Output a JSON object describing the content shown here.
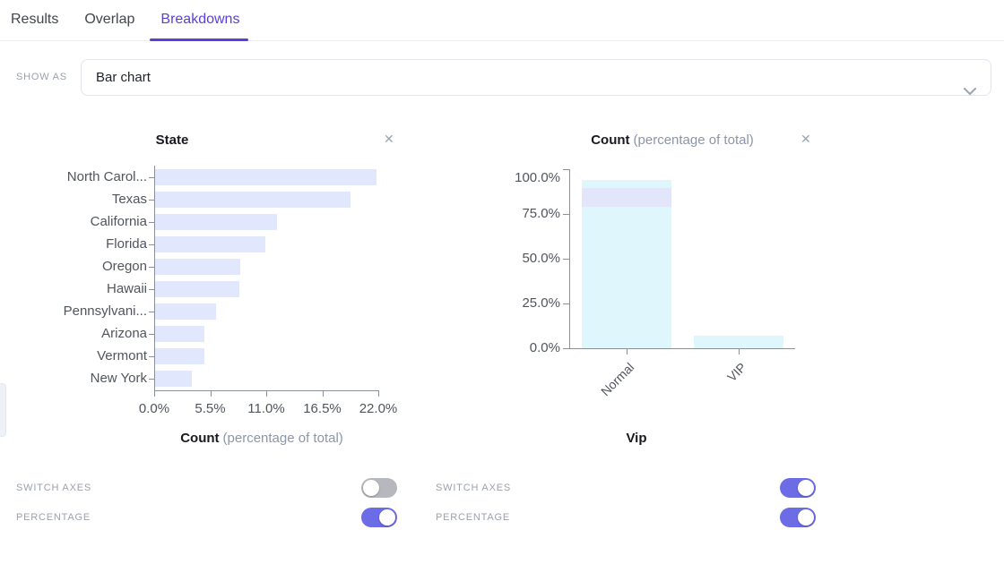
{
  "colors": {
    "accent": "#5a3de0",
    "toggle_on": "#6b6ce6",
    "toggle_off": "#b6b8bd",
    "axis": "#8a9099",
    "left_bar": "#e1e7fc",
    "right_bar": "#dff6fc",
    "overlay_band": "#e3e5fa"
  },
  "tabs": [
    {
      "label": "Results",
      "active": false
    },
    {
      "label": "Overlap",
      "active": false
    },
    {
      "label": "Breakdowns",
      "active": true
    }
  ],
  "show_as": {
    "label": "SHOW AS",
    "value": "Bar chart"
  },
  "icons": {
    "close": "✕",
    "chevron": "chevron-down"
  },
  "chart_data": [
    {
      "type": "bar",
      "orientation": "horizontal",
      "title": "State",
      "categories": [
        "North Carol...",
        "Texas",
        "California",
        "Florida",
        "Oregon",
        "Hawaii",
        "Pennsylvani...",
        "Arizona",
        "Vermont",
        "New York"
      ],
      "values": [
        21.7,
        19.2,
        12.0,
        10.8,
        8.4,
        8.3,
        6.0,
        4.8,
        4.8,
        3.6
      ],
      "value_unit": "%",
      "xlim": [
        0,
        22
      ],
      "xticks": [
        "0.0%",
        "5.5%",
        "11.0%",
        "16.5%",
        "22.0%"
      ],
      "xlabel": "Count",
      "xlabel_suffix": "(percentage of total)",
      "grid": false,
      "toggles": [
        {
          "label": "SWITCH AXES",
          "on": false
        },
        {
          "label": "PERCENTAGE",
          "on": true
        }
      ]
    },
    {
      "type": "bar",
      "orientation": "vertical",
      "title": "Count",
      "title_suffix": "(percentage of total)",
      "categories": [
        "Normal",
        "VIP"
      ],
      "values": [
        94,
        7
      ],
      "overlay_band": {
        "category": "Normal",
        "from": 79,
        "to": 89.5
      },
      "ylim": [
        0,
        100
      ],
      "yticks": [
        "0.0%",
        "25.0%",
        "50.0%",
        "75.0%",
        "100.0%"
      ],
      "xlabel": "Vip",
      "grid": false,
      "toggles": [
        {
          "label": "SWITCH AXES",
          "on": true
        },
        {
          "label": "PERCENTAGE",
          "on": true
        }
      ]
    }
  ]
}
